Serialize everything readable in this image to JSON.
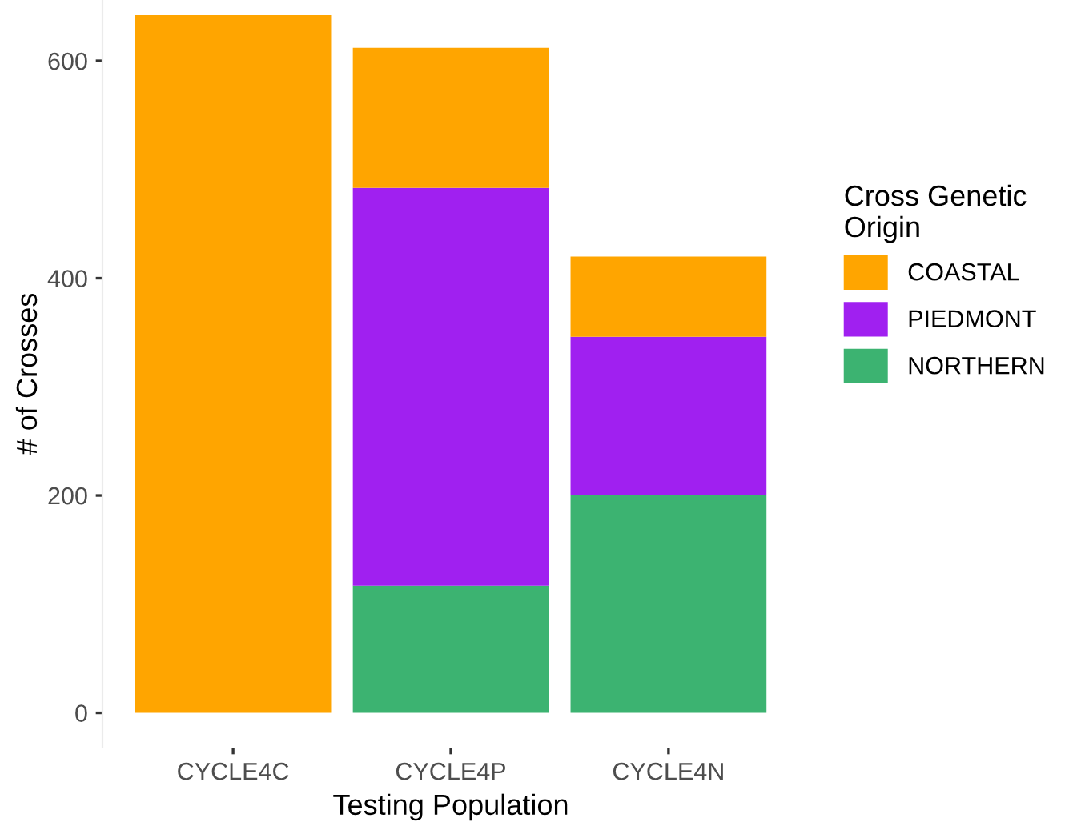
{
  "chart_data": {
    "type": "bar",
    "stacked": true,
    "xlabel": "Testing Population",
    "ylabel": "# of Crosses",
    "legend_title": "Cross Genetic\nOrigin",
    "legend": "right",
    "categories": [
      "CYCLE4C",
      "CYCLE4P",
      "CYCLE4N"
    ],
    "series": [
      {
        "name": "NORTHERN",
        "color": "#3cb371",
        "values": [
          0,
          117,
          200
        ]
      },
      {
        "name": "PIEDMONT",
        "color": "#a020f0",
        "values": [
          0,
          366,
          146
        ]
      },
      {
        "name": "COASTAL",
        "color": "#ffa500",
        "values": [
          642,
          129,
          74
        ]
      }
    ],
    "ylim": [
      -32,
      656
    ],
    "yticks": [
      0,
      200,
      400,
      600
    ],
    "grid": false
  }
}
